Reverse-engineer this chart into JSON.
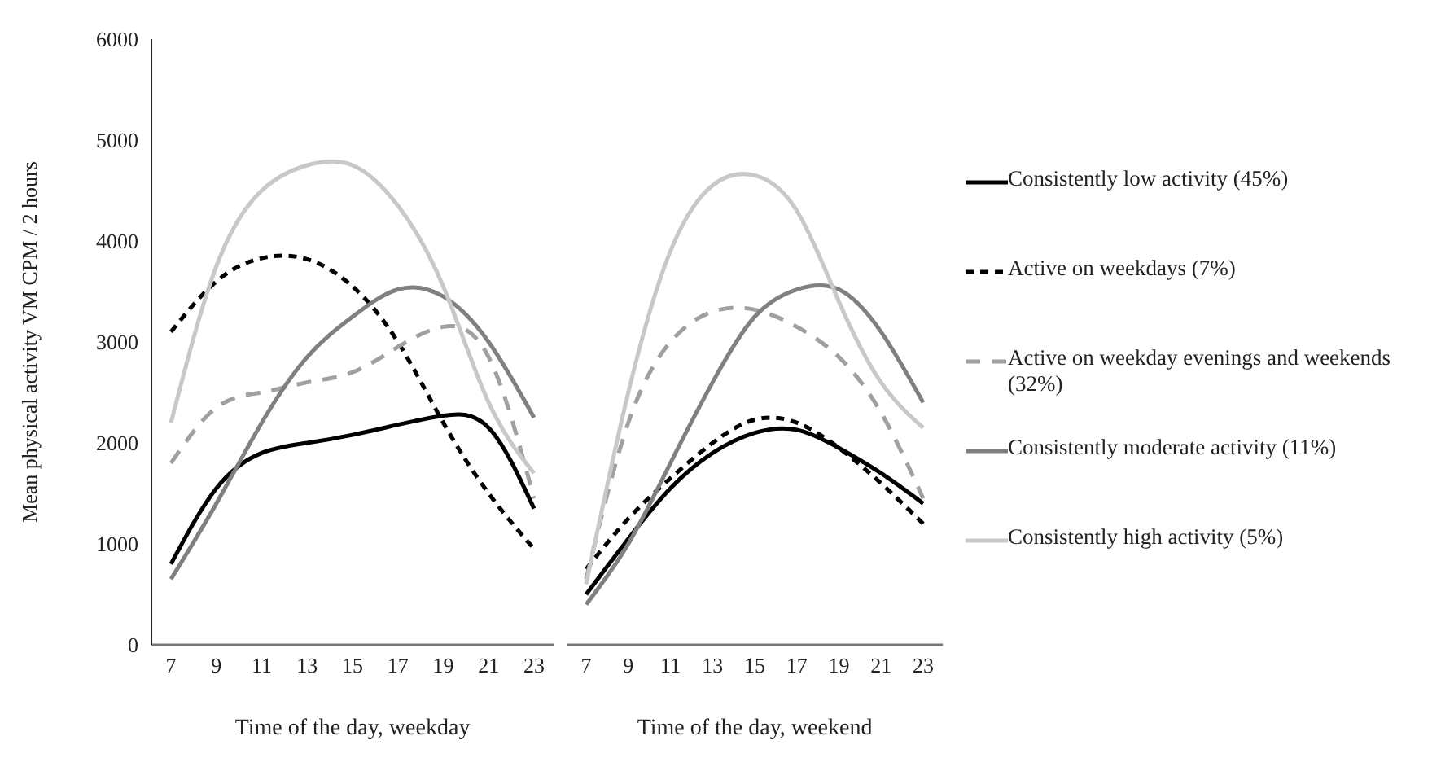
{
  "chart_data": [
    {
      "type": "line",
      "xlabel": "Time of the day, weekday",
      "ylabel": "Mean physical activity VM CPM / 2 hours",
      "categories": [
        "7",
        "9",
        "11",
        "13",
        "15",
        "17",
        "19",
        "21",
        "23"
      ],
      "ylim": [
        0,
        6000
      ],
      "yticks": [
        0,
        1000,
        2000,
        3000,
        4000,
        5000,
        6000
      ],
      "grid": false,
      "marker": "none",
      "series": [
        {
          "color": "#000000",
          "line_style": "solid",
          "values": [
            800,
            1550,
            1900,
            2000,
            2080,
            2180,
            2270,
            2150,
            1350
          ]
        },
        {
          "color": "#000000",
          "line_style": "dashed",
          "values": [
            3100,
            3600,
            3830,
            3820,
            3550,
            3000,
            2200,
            1500,
            950
          ]
        },
        {
          "color": "#a0a0a0",
          "line_style": "dashed",
          "values": [
            1800,
            2350,
            2500,
            2600,
            2700,
            2950,
            3150,
            2850,
            1450
          ]
        },
        {
          "color": "#808080",
          "line_style": "solid",
          "values": [
            650,
            1400,
            2200,
            2850,
            3250,
            3520,
            3450,
            3000,
            2250
          ]
        },
        {
          "color": "#c8c8c8",
          "line_style": "solid",
          "values": [
            2200,
            3750,
            4500,
            4750,
            4750,
            4350,
            3550,
            2400,
            1700
          ]
        }
      ]
    },
    {
      "type": "line",
      "xlabel": "Time of the day, weekend",
      "categories": [
        "7",
        "9",
        "11",
        "13",
        "15",
        "17",
        "19",
        "21",
        "23"
      ],
      "ylim": [
        0,
        6000
      ],
      "yticks": [
        0,
        1000,
        2000,
        3000,
        4000,
        5000,
        6000
      ],
      "tick_labels": "x",
      "grid": false,
      "marker": "none",
      "legend": "right",
      "series": [
        {
          "name": "Consistently low activity (45%)",
          "color": "#000000",
          "line_style": "solid",
          "values": [
            500,
            1050,
            1550,
            1900,
            2100,
            2130,
            1950,
            1700,
            1400
          ]
        },
        {
          "name": "Active on weekdays (7%)",
          "color": "#000000",
          "line_style": "dashed",
          "values": [
            750,
            1250,
            1650,
            2000,
            2230,
            2200,
            1950,
            1600,
            1200
          ]
        },
        {
          "name": "Active on weekday evenings and weekends (32%)",
          "color": "#a0a0a0",
          "line_style": "dashed",
          "values": [
            650,
            2200,
            3000,
            3300,
            3320,
            3150,
            2850,
            2300,
            1450
          ]
        },
        {
          "name": "Consistently moderate activity (11%)",
          "color": "#808080",
          "line_style": "solid",
          "values": [
            400,
            1000,
            1800,
            2600,
            3250,
            3520,
            3520,
            3100,
            2400
          ]
        },
        {
          "name": "Consistently high activity (5%)",
          "color": "#c8c8c8",
          "line_style": "solid",
          "values": [
            600,
            2500,
            3900,
            4550,
            4650,
            4300,
            3400,
            2600,
            2150
          ]
        }
      ]
    }
  ]
}
